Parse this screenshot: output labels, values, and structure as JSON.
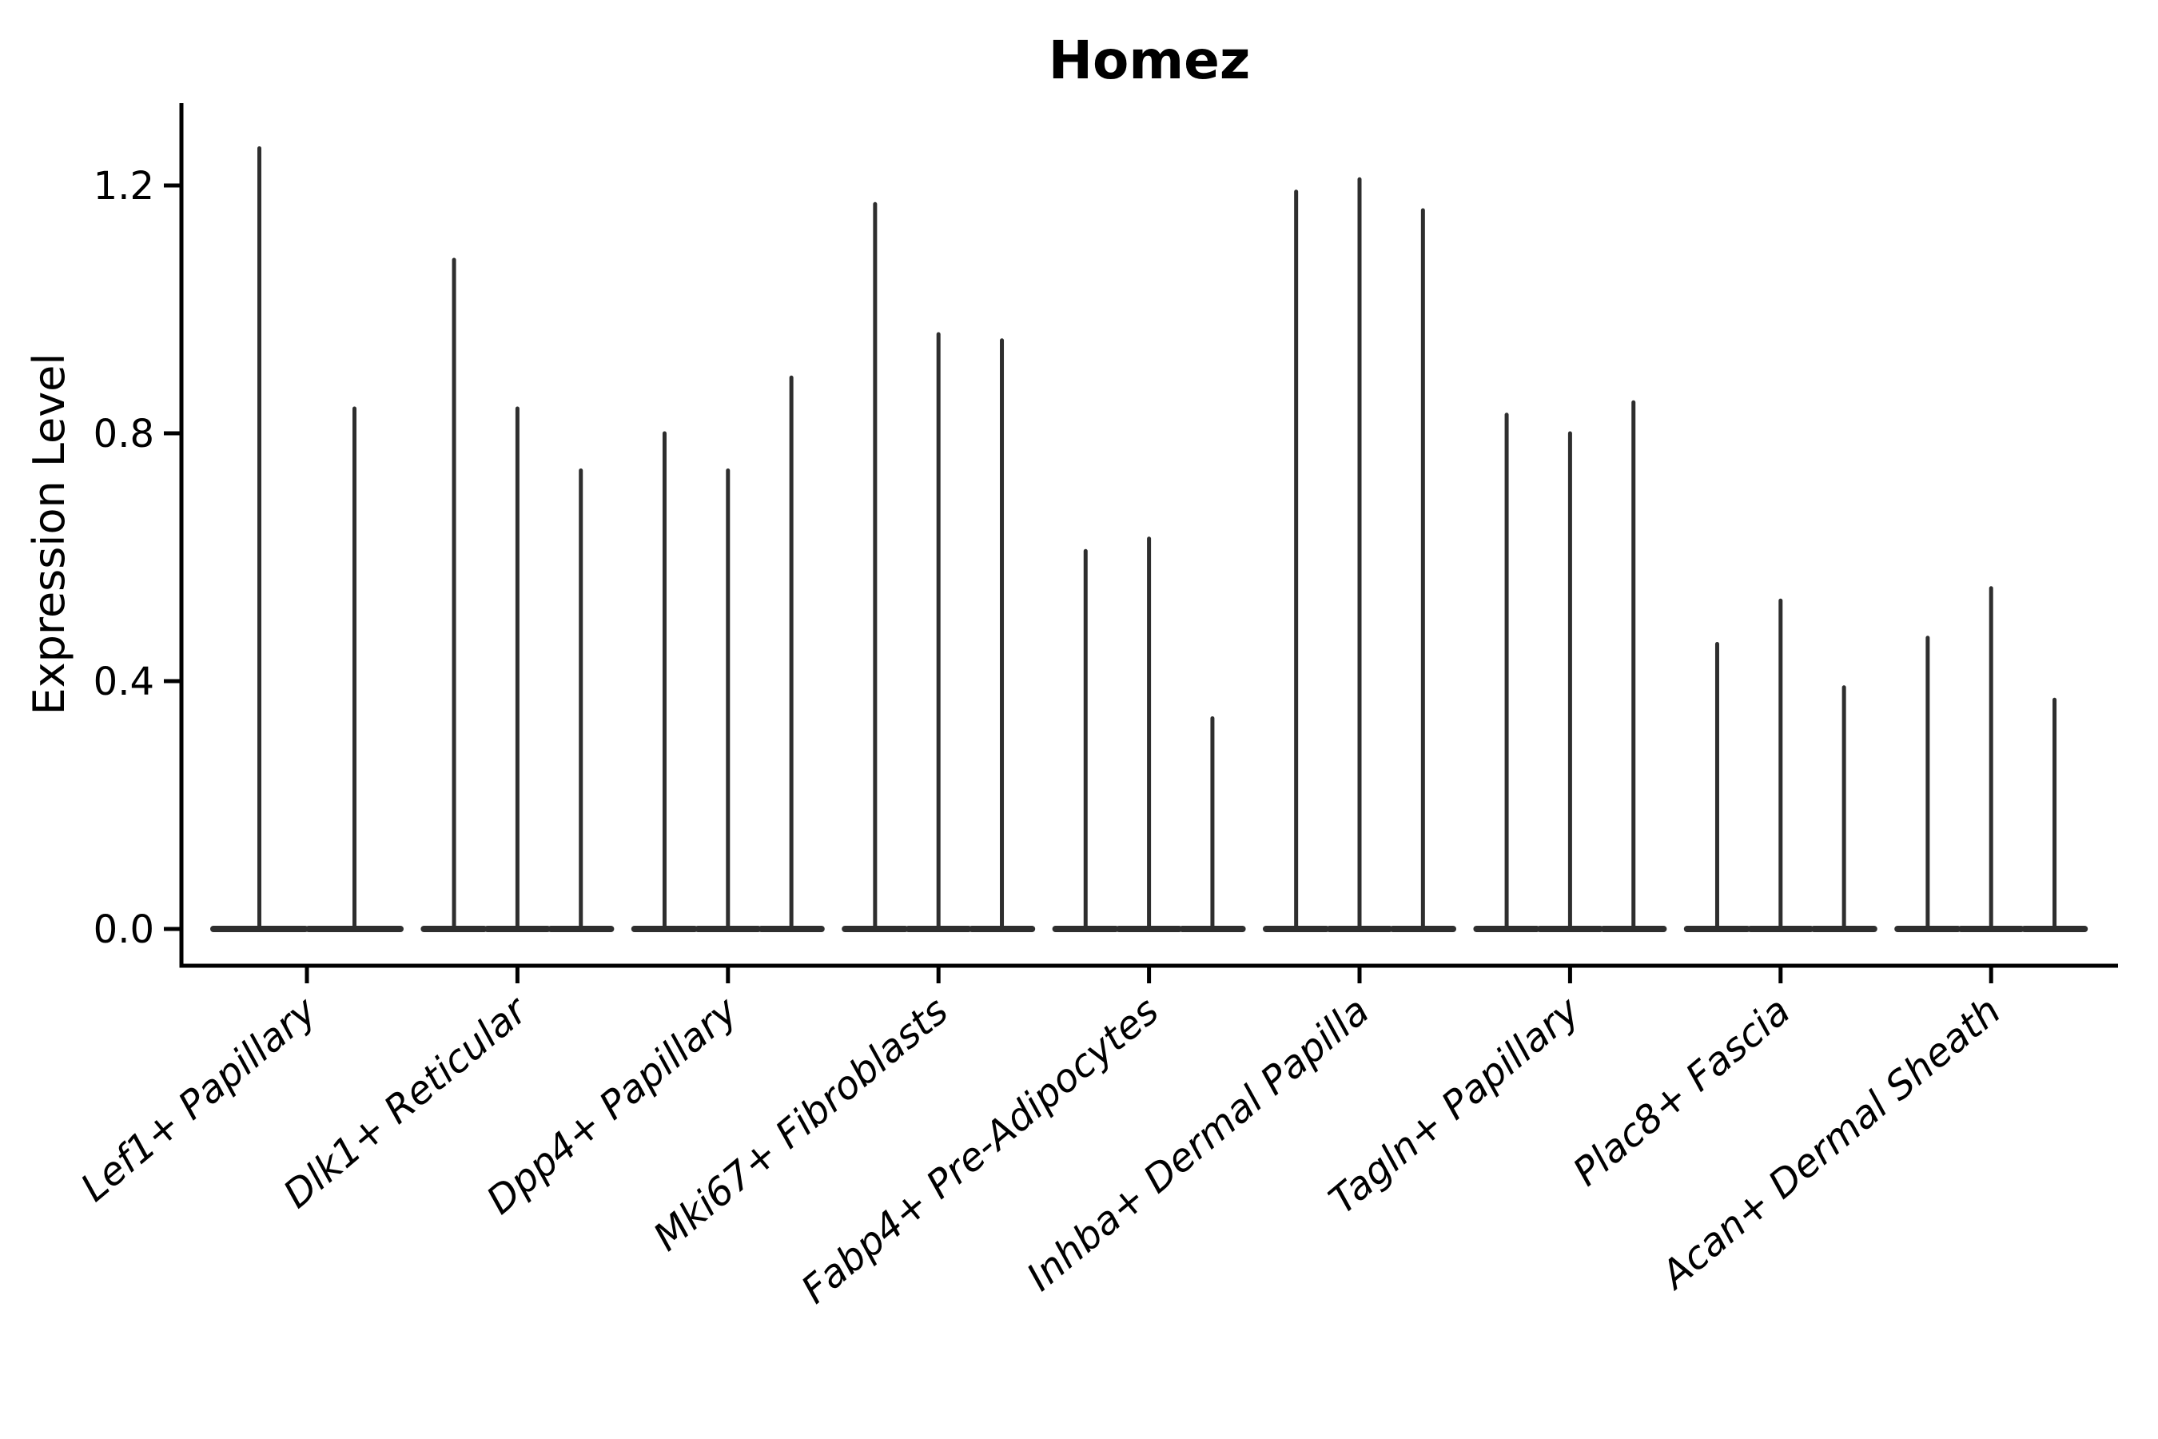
{
  "figure": {
    "background": "#ffffff"
  },
  "chart_data": {
    "type": "violin",
    "title": "Homez",
    "xlabel": "",
    "ylabel": "Expression Level",
    "yticks": [
      "0.0",
      "0.4",
      "0.8",
      "1.2"
    ],
    "ytick_values": [
      0.0,
      0.4,
      0.8,
      1.2
    ],
    "ylim": [
      -0.06,
      1.33
    ],
    "grid": false,
    "legend": "none",
    "violin_color": "#2e2e2e",
    "spine_color": "#000000",
    "categories": [
      {
        "label": "Lef1+ Papillary",
        "violin_peaks": [
          1.26,
          0.84
        ]
      },
      {
        "label": "Dlk1+ Reticular",
        "violin_peaks": [
          1.08,
          0.84,
          0.74
        ]
      },
      {
        "label": "Dpp4+ Papillary",
        "violin_peaks": [
          0.8,
          0.74,
          0.89
        ]
      },
      {
        "label": "Mki67+ Fibroblasts",
        "violin_peaks": [
          1.17,
          0.96,
          0.95
        ]
      },
      {
        "label": "Fabp4+ Pre-Adipocytes",
        "violin_peaks": [
          0.61,
          0.63,
          0.34
        ]
      },
      {
        "label": "Inhba+ Dermal Papilla",
        "violin_peaks": [
          1.19,
          1.21,
          1.16
        ]
      },
      {
        "label": "Tagln+ Papillary",
        "violin_peaks": [
          0.83,
          0.8,
          0.85
        ]
      },
      {
        "label": "Plac8+ Fascia",
        "violin_peaks": [
          0.46,
          0.53,
          0.39
        ]
      },
      {
        "label": "Acan+ Dermal Sheath",
        "violin_peaks": [
          0.47,
          0.55,
          0.37
        ]
      }
    ]
  }
}
